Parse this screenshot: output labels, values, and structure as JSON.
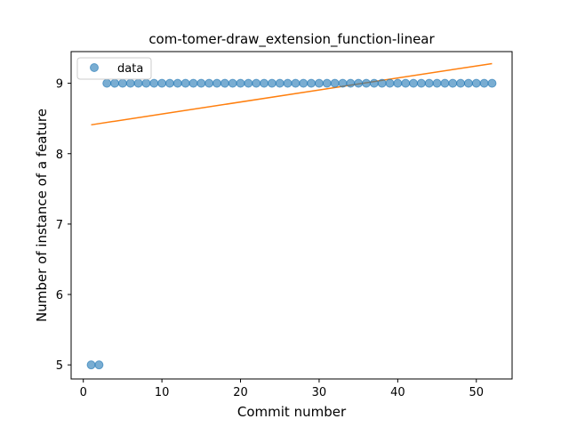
{
  "chart_data": {
    "type": "scatter",
    "title": "com-tomer-draw_extension_function-linear",
    "xlabel": "Commit number",
    "ylabel": "Number of instance of a feature",
    "xlim": [
      -1.55,
      54.55
    ],
    "ylim": [
      4.8,
      9.45
    ],
    "xticks": [
      0,
      10,
      20,
      30,
      40,
      50
    ],
    "yticks": [
      5,
      6,
      7,
      8,
      9
    ],
    "grid": false,
    "legend_position": "top-left",
    "series": [
      {
        "name": "data",
        "kind": "scatter",
        "color": "#1f77b4",
        "x": [
          1,
          2,
          3,
          4,
          5,
          6,
          7,
          8,
          9,
          10,
          11,
          12,
          13,
          14,
          15,
          16,
          17,
          18,
          19,
          20,
          21,
          22,
          23,
          24,
          25,
          26,
          27,
          28,
          29,
          30,
          31,
          32,
          33,
          34,
          35,
          36,
          37,
          38,
          39,
          40,
          41,
          42,
          43,
          44,
          45,
          46,
          47,
          48,
          49,
          50,
          51,
          52
        ],
        "y": [
          5,
          5,
          9,
          9,
          9,
          9,
          9,
          9,
          9,
          9,
          9,
          9,
          9,
          9,
          9,
          9,
          9,
          9,
          9,
          9,
          9,
          9,
          9,
          9,
          9,
          9,
          9,
          9,
          9,
          9,
          9,
          9,
          9,
          9,
          9,
          9,
          9,
          9,
          9,
          9,
          9,
          9,
          9,
          9,
          9,
          9,
          9,
          9,
          9,
          9,
          9,
          9
        ]
      },
      {
        "kind": "line",
        "color": "#ff7f0e",
        "x": [
          1,
          52
        ],
        "y": [
          8.41,
          9.28
        ]
      }
    ]
  }
}
